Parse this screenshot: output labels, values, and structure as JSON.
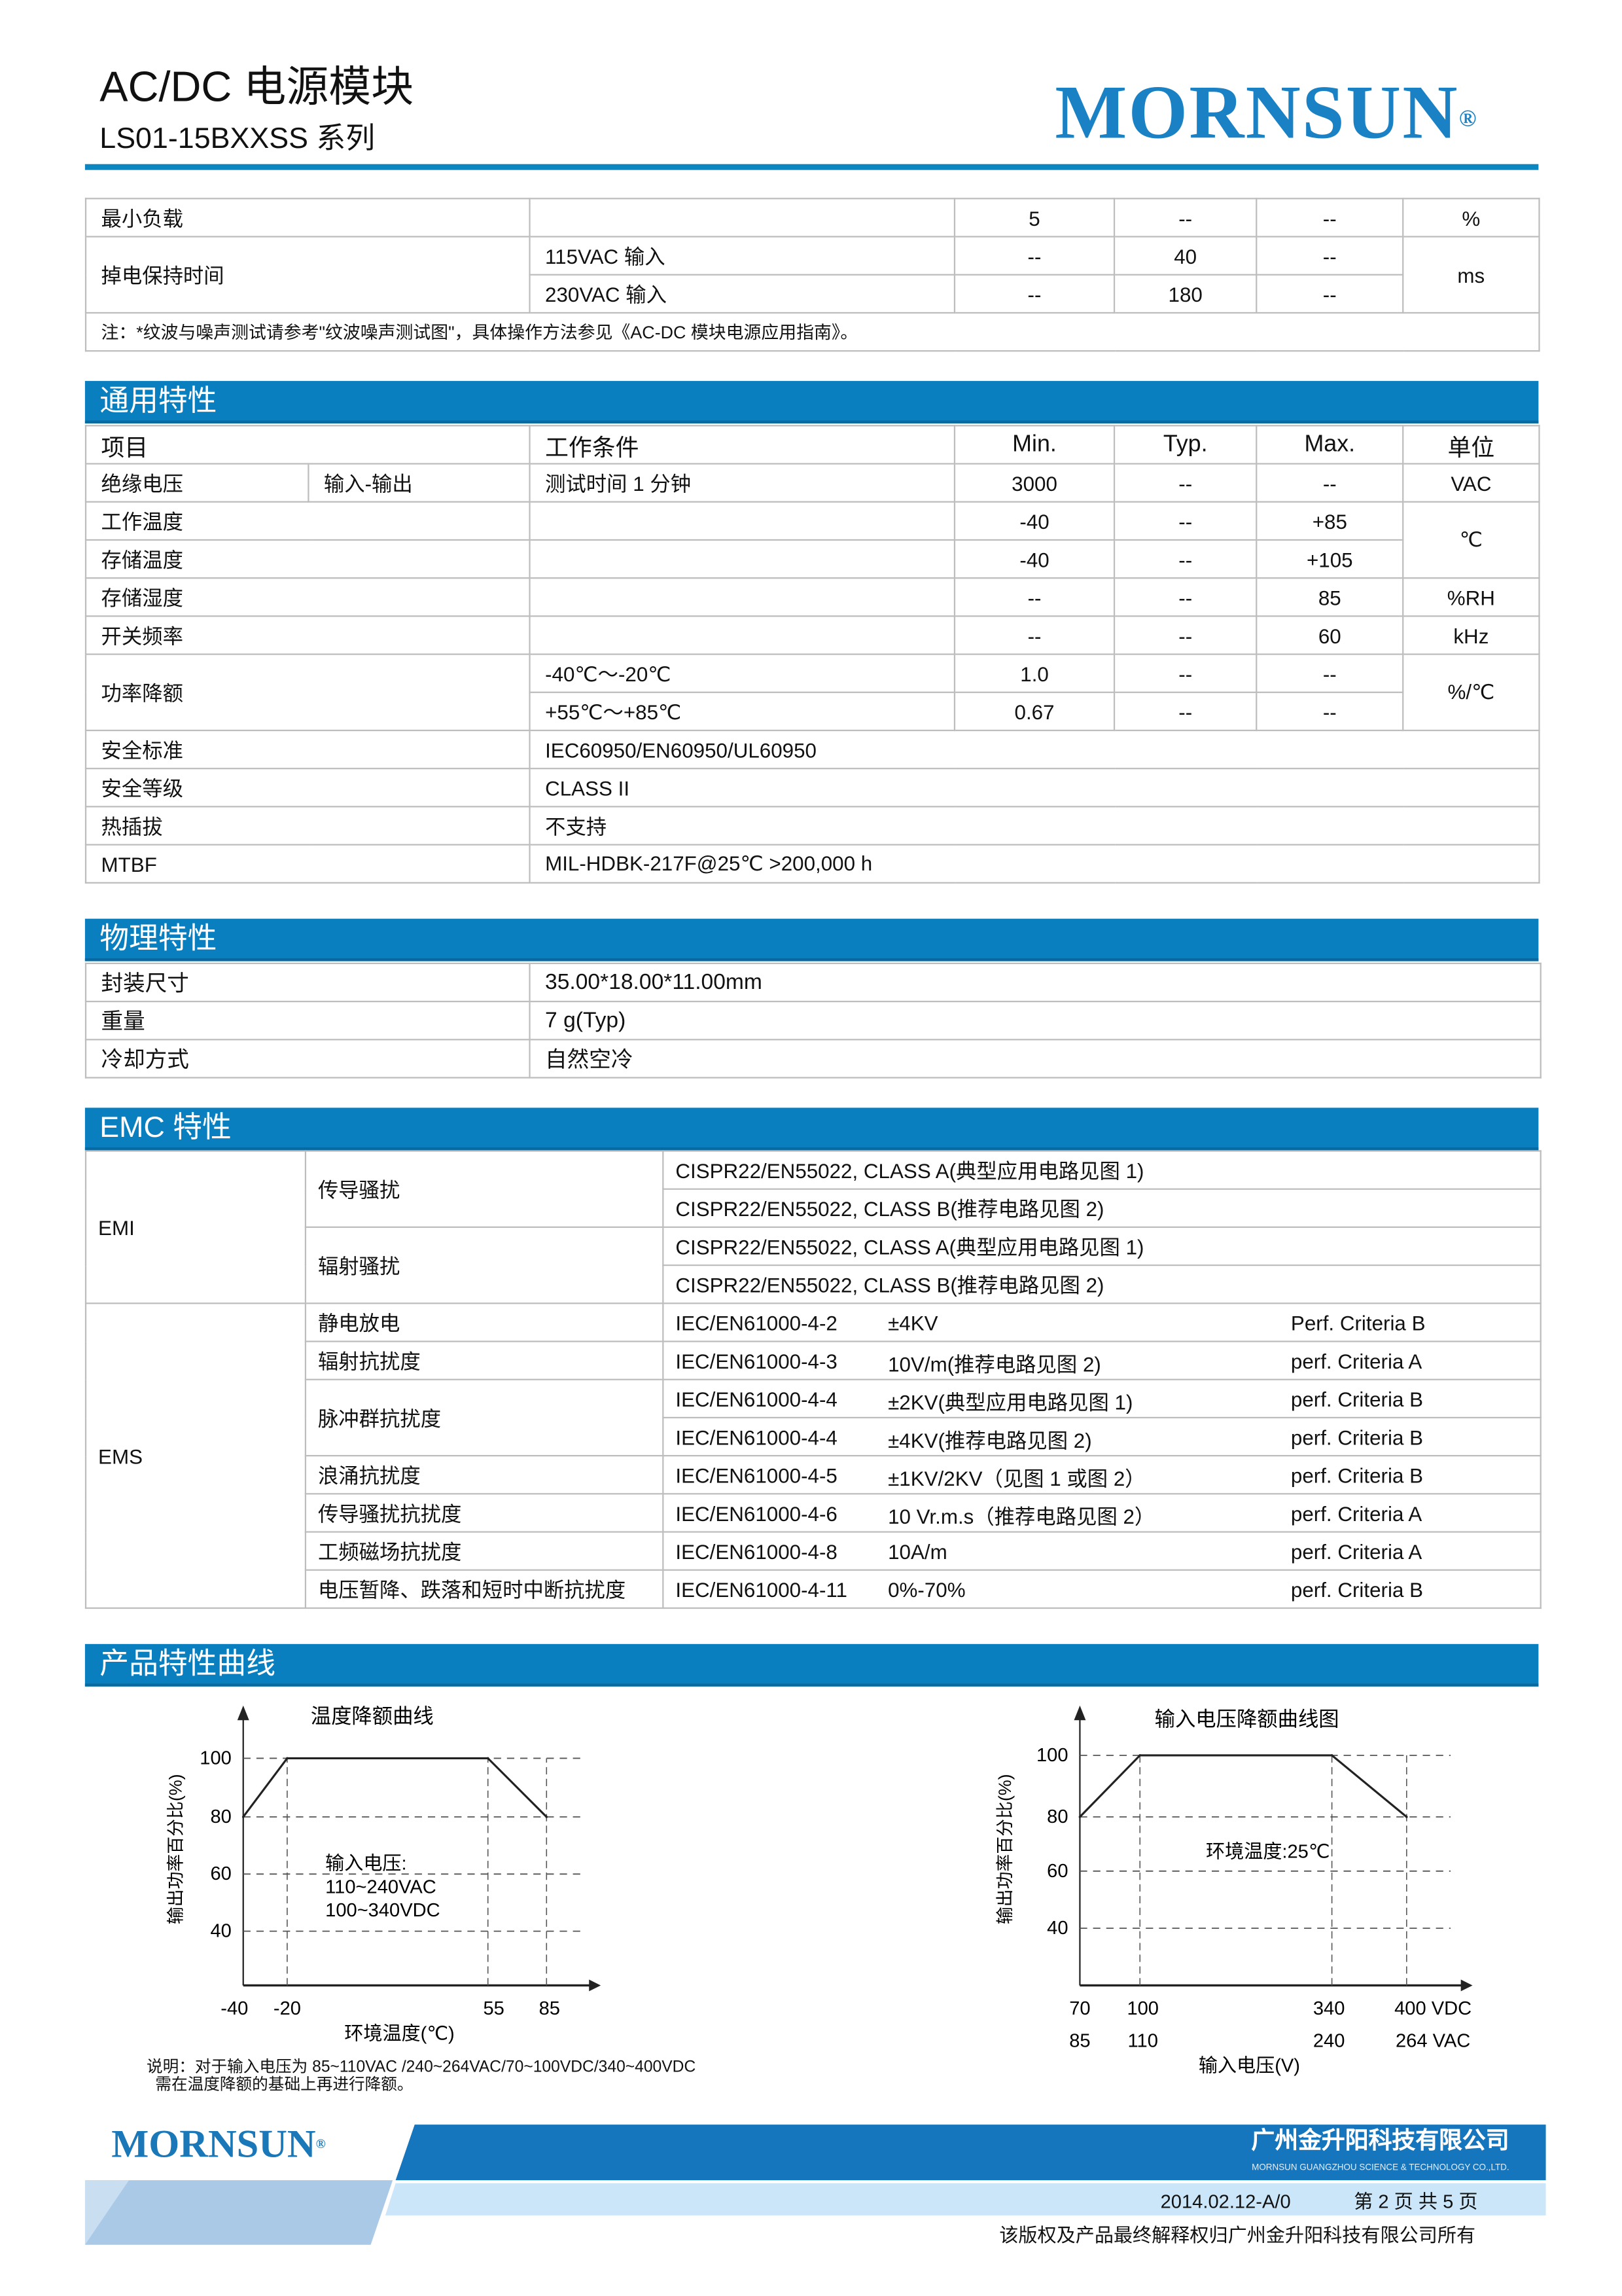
{
  "header": {
    "title": "AC/DC 电源模块",
    "subtitle": "LS01-15BXXSS 系列",
    "logo": "MORNSUN"
  },
  "colors": {
    "accent": "#0a7fc0",
    "logo": "#1a82c4"
  },
  "table_top": {
    "rows": [
      {
        "item": "最小负载",
        "cond": "",
        "min": "5",
        "typ": "--",
        "max": "--",
        "unit": "%"
      },
      {
        "item": "掉电保持时间",
        "cond": "115VAC 输入",
        "min": "--",
        "typ": "40",
        "max": "--",
        "unit": "ms"
      },
      {
        "cond": "230VAC 输入",
        "min": "--",
        "typ": "180",
        "max": "--"
      }
    ],
    "note": "注：*纹波与噪声测试请参考\"纹波噪声测试图\"，具体操作方法参见《AC-DC 模块电源应用指南》。"
  },
  "general": {
    "title": "通用特性",
    "headers": [
      "项目",
      "工作条件",
      "Min.",
      "Typ.",
      "Max.",
      "单位"
    ],
    "isolation": {
      "item": "绝缘电压",
      "sub": "输入-输出",
      "cond": "测试时间 1 分钟",
      "min": "3000",
      "typ": "--",
      "max": "--",
      "unit": "VAC"
    },
    "op_temp": {
      "item": "工作温度",
      "min": "-40",
      "typ": "--",
      "max": "+85",
      "unit": "℃"
    },
    "st_temp": {
      "item": "存储温度",
      "min": "-40",
      "typ": "--",
      "max": "+105"
    },
    "humidity": {
      "item": "存储湿度",
      "min": "--",
      "typ": "--",
      "max": "85",
      "unit": "%RH"
    },
    "freq": {
      "item": "开关频率",
      "min": "--",
      "typ": "--",
      "max": "60",
      "unit": "kHz"
    },
    "derating": {
      "item": "功率降额",
      "cond1": "-40℃～-20℃",
      "min1": "1.0",
      "typ1": "--",
      "max1": "--",
      "cond2": "+55℃～+85℃",
      "min2": "0.67",
      "typ2": "--",
      "max2": "--",
      "unit": "%/℃"
    },
    "safety_std": {
      "item": "安全标准",
      "value": "IEC60950/EN60950/UL60950"
    },
    "safety_class": {
      "item": "安全等级",
      "value": "CLASS II"
    },
    "hot_plug": {
      "item": "热插拔",
      "value": "不支持"
    },
    "mtbf": {
      "item": "MTBF",
      "value": "MIL-HDBK-217F@25℃  >200,000 h"
    }
  },
  "physical": {
    "title": "物理特性",
    "rows": [
      {
        "item": "封装尺寸",
        "value": "35.00*18.00*11.00mm"
      },
      {
        "item": "重量",
        "value": "7 g(Typ)"
      },
      {
        "item": "冷却方式",
        "value": "自然空冷"
      }
    ]
  },
  "emc": {
    "title": "EMC 特性",
    "emi": {
      "label": "EMI",
      "conducted": "传导骚扰",
      "radiated": "辐射骚扰",
      "rows": [
        "CISPR22/EN55022, CLASS A(典型应用电路见图 1)",
        "CISPR22/EN55022, CLASS B(推荐电路见图 2)",
        "CISPR22/EN55022, CLASS A(典型应用电路见图 1)",
        "CISPR22/EN55022, CLASS B(推荐电路见图 2)"
      ]
    },
    "ems": {
      "label": "EMS",
      "rows": [
        {
          "item": "静电放电",
          "std": "IEC/EN61000-4-2",
          "val": "±4KV",
          "crit": "Perf. Criteria B"
        },
        {
          "item": "辐射抗扰度",
          "std": "IEC/EN61000-4-3",
          "val": "10V/m(推荐电路见图 2)",
          "crit": "perf. Criteria A"
        },
        {
          "item": "脉冲群抗扰度",
          "std": "IEC/EN61000-4-4",
          "val": "±2KV(典型应用电路见图 1)",
          "crit": "perf. Criteria B"
        },
        {
          "std": "IEC/EN61000-4-4",
          "val": "±4KV(推荐电路见图 2)",
          "crit": "perf. Criteria B"
        },
        {
          "item": "浪涌抗扰度",
          "std": "IEC/EN61000-4-5",
          "val": "±1KV/2KV（见图 1 或图 2）",
          "crit": "perf. Criteria B"
        },
        {
          "item": "传导骚扰抗扰度",
          "std": "IEC/EN61000-4-6",
          "val": "10 Vr.m.s（推荐电路见图 2）",
          "crit": "perf. Criteria A"
        },
        {
          "item": "工频磁场抗扰度",
          "std": "IEC/EN61000-4-8",
          "val": "10A/m",
          "crit": "perf. Criteria A"
        },
        {
          "item": "电压暂降、跌落和短时中断抗扰度",
          "std": "IEC/EN61000-4-11",
          "val": "0%-70%",
          "crit": "perf. Criteria B"
        }
      ]
    }
  },
  "curves": {
    "title": "产品特性曲线",
    "note1": "说明：对于输入电压为 85~110VAC /240~264VAC/70~100VDC/340~400VDC",
    "note2": "需在温度降额的基础上再进行降额。"
  },
  "chart_data": [
    {
      "type": "line",
      "title": "温度降额曲线",
      "xlabel": "环境温度(℃)",
      "ylabel": "输出功率百分比(%)",
      "x_ticks": [
        "-40",
        "-20",
        "55",
        "85"
      ],
      "y_ticks": [
        "100",
        "80",
        "60",
        "40"
      ],
      "x": [
        -40,
        -20,
        55,
        85
      ],
      "values": [
        80,
        100,
        100,
        80
      ],
      "annotation": [
        "输入电压:",
        "110~240VAC",
        "100~340VDC"
      ],
      "grid": true
    },
    {
      "type": "line",
      "title": "输入电压降额曲线图",
      "xlabel": "输入电压(V)",
      "ylabel": "输出功率百分比(%)",
      "x_ticks": [
        "70",
        "100",
        "340",
        "400 VDC"
      ],
      "x_ticks2": [
        "85",
        "110",
        "240",
        "264 VAC"
      ],
      "y_ticks": [
        "100",
        "80",
        "60",
        "40"
      ],
      "x": [
        70,
        100,
        340,
        400
      ],
      "values": [
        80,
        100,
        100,
        80
      ],
      "annotation": [
        "环境温度:25℃"
      ],
      "grid": true
    }
  ],
  "footer": {
    "logo": "MORNSUN",
    "company": "广州金升阳科技有限公司",
    "company_en": "MORNSUN GUANGZHOU SCIENCE & TECHNOLOGY CO.,LTD.",
    "version": "2014.02.12-A/0",
    "page": "第 2 页 共 5 页",
    "copyright": "该版权及产品最终解释权归广州金升阳科技有限公司所有"
  }
}
